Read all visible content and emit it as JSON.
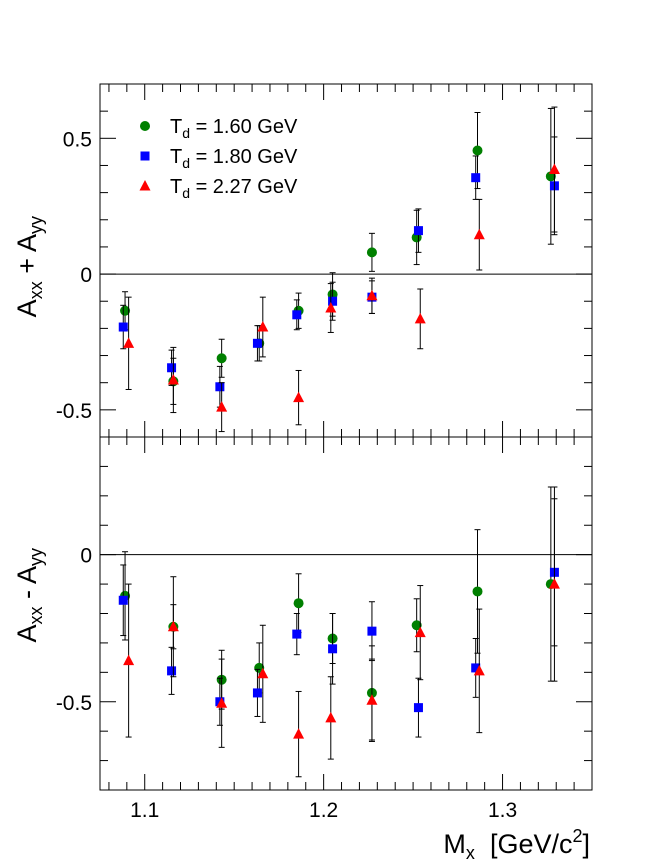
{
  "chart_data": {
    "type": "scatter",
    "x_axis": {
      "range": [
        1.075,
        1.35
      ],
      "ticks": [
        1.1,
        1.2,
        1.3
      ],
      "tick_labels": [
        "1.1",
        "1.2",
        "1.3"
      ],
      "label_main": "M",
      "label_sub": "x",
      "label_unit_open": "[GeV/c",
      "label_unit_sup": "2",
      "label_unit_close": "]"
    },
    "legend": {
      "placement": "top-left",
      "entries": [
        {
          "prefix": "T",
          "sub": "d",
          "text": " = 1.60 GeV",
          "color": "#008000",
          "marker": "circle"
        },
        {
          "prefix": "T",
          "sub": "d",
          "text": " = 1.80 GeV",
          "color": "#0000ff",
          "marker": "square"
        },
        {
          "prefix": "T",
          "sub": "d",
          "text": " = 2.27 GeV",
          "color": "#ff0000",
          "marker": "triangle"
        }
      ]
    },
    "panels": [
      {
        "ylabel": {
          "a": "A",
          "a_sub": "xx",
          "op": " + ",
          "b": "A",
          "b_sub": "yy"
        },
        "ylim": [
          -0.6,
          0.7
        ],
        "y_ticks": [
          -0.5,
          0,
          0.5
        ],
        "y_tick_labels": [
          "-0.5",
          "0",
          "0.5"
        ],
        "series": [
          {
            "legend_index": 0,
            "color": "#008000",
            "marker": "circle",
            "points": [
              [
                1.089,
                -0.135,
                0.07
              ],
              [
                1.116,
                -0.395,
                0.085
              ],
              [
                1.143,
                -0.31,
                0.07
              ],
              [
                1.164,
                -0.255,
                0.065
              ],
              [
                1.186,
                -0.135,
                0.065
              ],
              [
                1.205,
                -0.075,
                0.08
              ],
              [
                1.227,
                0.08,
                0.07
              ],
              [
                1.252,
                0.135,
                0.1
              ],
              [
                1.286,
                0.455,
                0.14
              ],
              [
                1.327,
                0.36,
                0.25
              ]
            ]
          },
          {
            "legend_index": 1,
            "color": "#0000ff",
            "marker": "square",
            "points": [
              [
                1.088,
                -0.195,
                0.08
              ],
              [
                1.115,
                -0.345,
                0.065
              ],
              [
                1.142,
                -0.415,
                0.075
              ],
              [
                1.163,
                -0.255,
                0.065
              ],
              [
                1.185,
                -0.15,
                0.055
              ],
              [
                1.205,
                -0.1,
                0.07
              ],
              [
                1.227,
                -0.085,
                0.06
              ],
              [
                1.253,
                0.16,
                0.08
              ],
              [
                1.285,
                0.355,
                0.08
              ],
              [
                1.329,
                0.325,
                0.18
              ]
            ]
          },
          {
            "legend_index": 2,
            "color": "#ff0000",
            "marker": "triangle",
            "points": [
              [
                1.091,
                -0.255,
                0.17
              ],
              [
                1.116,
                -0.39,
                0.12
              ],
              [
                1.143,
                -0.49,
                0.09
              ],
              [
                1.166,
                -0.195,
                0.11
              ],
              [
                1.186,
                -0.455,
                0.1
              ],
              [
                1.204,
                -0.125,
                0.09
              ],
              [
                1.227,
                -0.08,
                0.065
              ],
              [
                1.254,
                -0.165,
                0.11
              ],
              [
                1.287,
                0.145,
                0.13
              ],
              [
                1.329,
                0.385,
                0.23
              ]
            ]
          }
        ]
      },
      {
        "ylabel": {
          "a": "A",
          "a_sub": "xx",
          "op": " - ",
          "b": "A",
          "b_sub": "yy"
        },
        "ylim": [
          -0.8,
          0.4
        ],
        "y_ticks": [
          -0.5,
          0
        ],
        "y_tick_labels": [
          "-0.5",
          "0"
        ],
        "series": [
          {
            "legend_index": 0,
            "color": "#008000",
            "marker": "circle",
            "points": [
              [
                1.089,
                -0.14,
                0.15
              ],
              [
                1.116,
                -0.245,
                0.075
              ],
              [
                1.143,
                -0.425,
                0.1
              ],
              [
                1.164,
                -0.385,
                0.085
              ],
              [
                1.186,
                -0.165,
                0.1
              ],
              [
                1.205,
                -0.285,
                0.085
              ],
              [
                1.227,
                -0.47,
                0.16
              ],
              [
                1.252,
                -0.24,
                0.09
              ],
              [
                1.286,
                -0.125,
                0.21
              ],
              [
                1.327,
                -0.1,
                0.33
              ]
            ]
          },
          {
            "legend_index": 1,
            "color": "#0000ff",
            "marker": "square",
            "points": [
              [
                1.088,
                -0.155,
                0.12
              ],
              [
                1.115,
                -0.395,
                0.08
              ],
              [
                1.142,
                -0.5,
                0.08
              ],
              [
                1.163,
                -0.47,
                0.08
              ],
              [
                1.185,
                -0.27,
                0.07
              ],
              [
                1.205,
                -0.32,
                0.12
              ],
              [
                1.227,
                -0.26,
                0.1
              ],
              [
                1.253,
                -0.52,
                0.1
              ],
              [
                1.285,
                -0.385,
                0.1
              ],
              [
                1.329,
                -0.06,
                0.25
              ]
            ]
          },
          {
            "legend_index": 2,
            "color": "#ff0000",
            "marker": "triangle",
            "points": [
              [
                1.091,
                -0.36,
                0.26
              ],
              [
                1.116,
                -0.245,
                0.17
              ],
              [
                1.143,
                -0.505,
                0.15
              ],
              [
                1.166,
                -0.405,
                0.165
              ],
              [
                1.186,
                -0.61,
                0.145
              ],
              [
                1.204,
                -0.555,
                0.14
              ],
              [
                1.227,
                -0.495,
                0.14
              ],
              [
                1.254,
                -0.265,
                0.16
              ],
              [
                1.287,
                -0.395,
                0.21
              ],
              [
                1.329,
                -0.1,
                0.33
              ]
            ]
          }
        ]
      }
    ]
  }
}
